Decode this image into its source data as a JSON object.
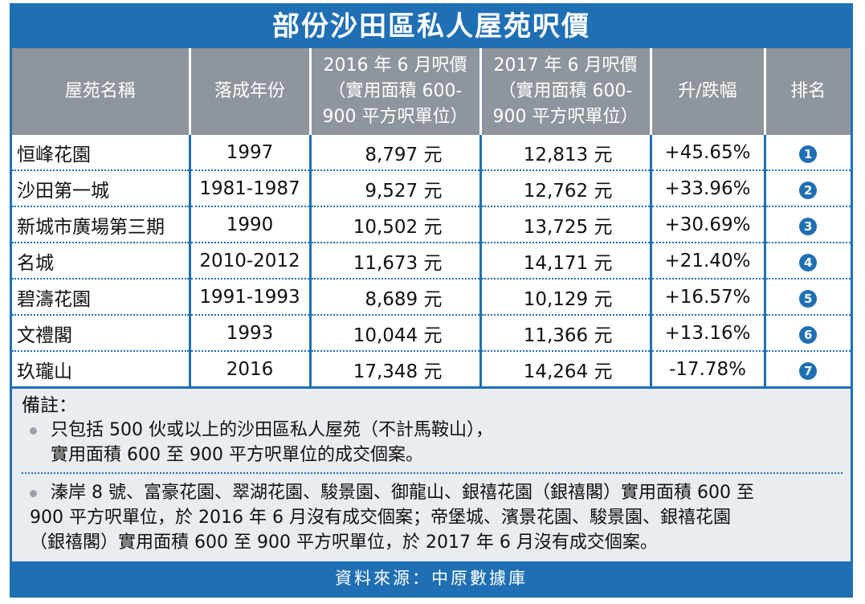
{
  "title": "部份沙田區私人屋苑呎價",
  "table": {
    "headers": [
      "屋苑名稱",
      "落成年份",
      "2016 年 6 月呎價\n（實用面積 600-\n900 平方呎單位）",
      "2017 年 6 月呎價\n（實用面積 600-\n900 平方呎單位）",
      "升/跌幅",
      "排名"
    ],
    "rows": [
      {
        "name": "恒峰花園",
        "year": "1997",
        "price_2016": "8,797 元",
        "price_2017": "12,813 元",
        "change": "+45.65%",
        "rank": "1"
      },
      {
        "name": "沙田第一城",
        "year": "1981-1987",
        "price_2016": "9,527 元",
        "price_2017": "12,762 元",
        "change": "+33.96%",
        "rank": "2"
      },
      {
        "name": "新城市廣場第三期",
        "year": "1990",
        "price_2016": "10,502 元",
        "price_2017": "13,725 元",
        "change": "+30.69%",
        "rank": "3"
      },
      {
        "name": "名城",
        "year": "2010-2012",
        "price_2016": "11,673 元",
        "price_2017": "14,171 元",
        "change": "+21.40%",
        "rank": "4"
      },
      {
        "name": "碧濤花園",
        "year": "1991-1993",
        "price_2016": "8,689 元",
        "price_2017": "10,129 元",
        "change": "+16.57%",
        "rank": "5"
      },
      {
        "name": "文禮閣",
        "year": "1993",
        "price_2016": "10,044 元",
        "price_2017": "11,366 元",
        "change": "+13.16%",
        "rank": "6"
      },
      {
        "name": "玖瓏山",
        "year": "2016",
        "price_2016": "17,348 元",
        "price_2017": "14,264 元",
        "change": "-17.78%",
        "rank": "7"
      }
    ]
  },
  "notes": {
    "label": "備註：",
    "item1_line1": "只包括 500 伙或以上的沙田區私人屋苑（不計馬鞍山），",
    "item1_line2": "實用面積 600 至 900 平方呎單位的成交個案。",
    "item2_line1": "溱岸 8 號、富豪花園、翠湖花園、駿景園、御龍山、銀禧花園（銀禧閣）實用面積 600 至",
    "item2_line2": "900 平方呎單位，於 2016 年 6 月沒有成交個案；帝堡城、濱景花園、駿景園、銀禧花園",
    "item2_line3": "（銀禧閣）實用面積 600 至 900 平方呎單位，於 2017 年 6 月沒有成交個案。"
  },
  "source": "資料來源：中原數據庫",
  "colors": {
    "accent": "#1f6fb5",
    "header_gray": "#8e959c",
    "notes_bg": "#e9edf1"
  }
}
